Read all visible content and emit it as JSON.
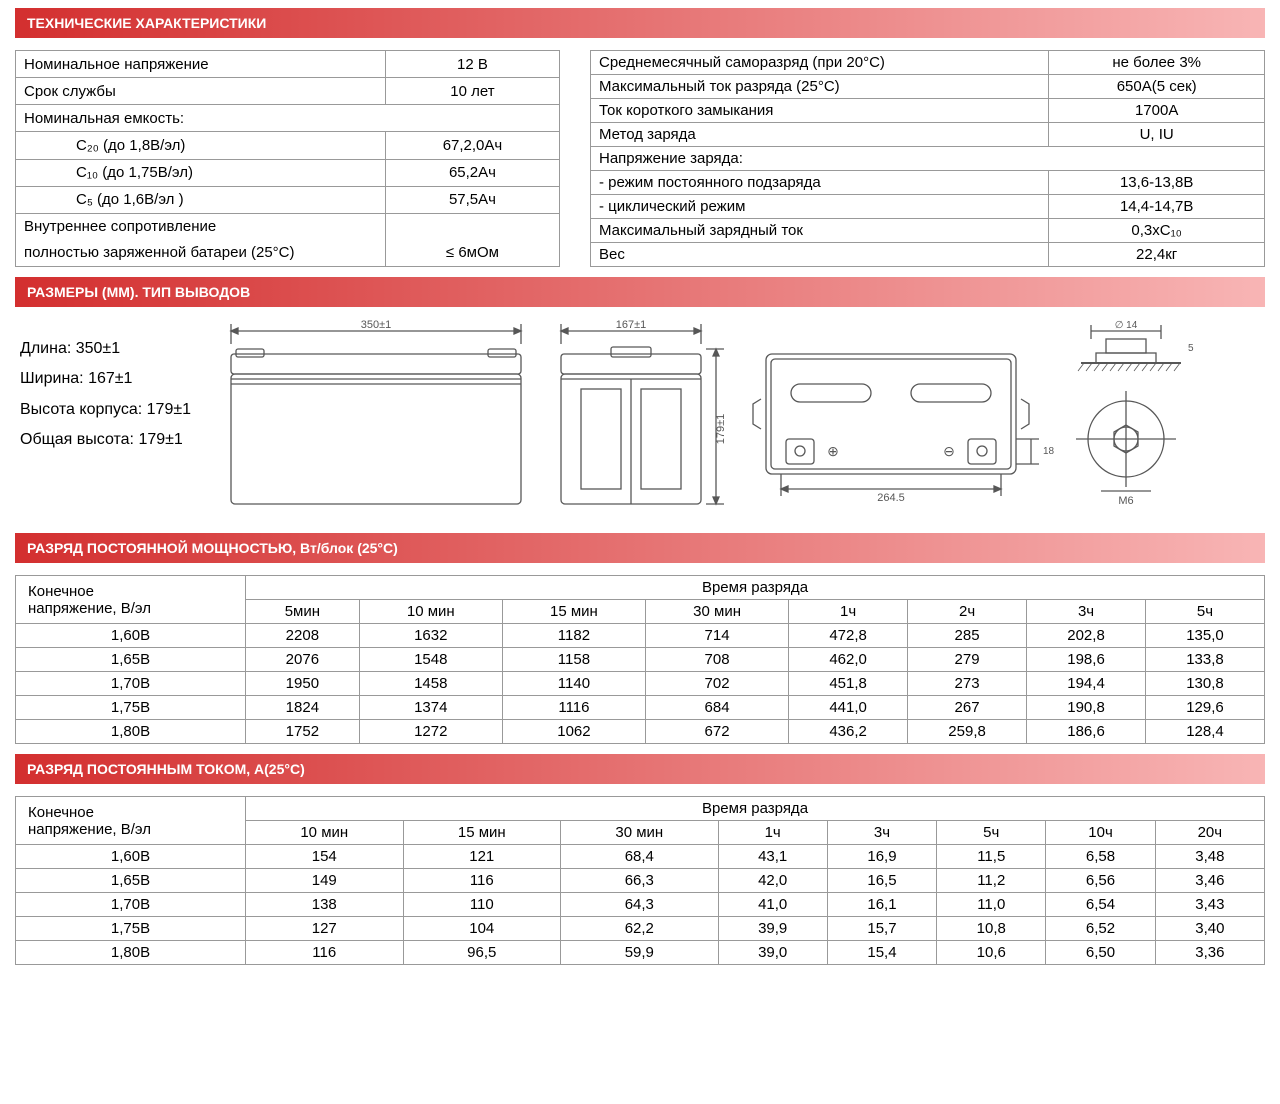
{
  "colors": {
    "header_grad_start": "#d32f2f",
    "header_grad_end": "#f8b5b5",
    "border": "#999999",
    "text": "#000000",
    "bg": "#ffffff",
    "drawing_stroke": "#575757"
  },
  "sections": {
    "tech_specs": "ТЕХНИЧЕСКИЕ ХАРАКТЕРИСТИКИ",
    "dimensions": "РАЗМЕРЫ (ММ). ТИП ВЫВОДОВ",
    "power_discharge": "РАЗРЯД ПОСТОЯННОЙ МОЩНОСТЬЮ, Вт/блок (25°С)",
    "current_discharge": "РАЗРЯД ПОСТОЯННЫМ ТОКОМ, А(25°С)"
  },
  "spec_left": {
    "r1": {
      "label": "Номинальное напряжение",
      "value": "12 В"
    },
    "r2": {
      "label": "Срок службы",
      "value": "10 лет"
    },
    "r3": {
      "label": "Номинальная емкость:",
      "value": ""
    },
    "r4": {
      "label": "С₂₀   (до 1,8В/эл)",
      "value": "67,2,0Ач"
    },
    "r5": {
      "label": "С₁₀   (до 1,75В/эл)",
      "value": "65,2Ач"
    },
    "r6": {
      "label": "С₅   (до 1,6В/эл )",
      "value": "57,5Ач"
    },
    "r7": {
      "label1": "Внутреннее сопротивление",
      "label2": "полностью заряженной батареи (25°С)",
      "value": "≤ 6мОм"
    }
  },
  "spec_right": {
    "r1": {
      "label": "Среднемесячный саморазряд (при 20°С)",
      "value": "не более 3%"
    },
    "r2": {
      "label": "Максимальный ток разряда (25°С)",
      "value": "650А(5 сек)"
    },
    "r3": {
      "label": "Ток короткого замыкания",
      "value": "1700А"
    },
    "r4": {
      "label": "Метод заряда",
      "value": "U, IU"
    },
    "r5": {
      "label": "Напряжение заряда:",
      "value": ""
    },
    "r6": {
      "label": "- режим постоянного подзаряда",
      "value": "13,6-13,8В"
    },
    "r7": {
      "label": "- циклический режим",
      "value": "14,4-14,7В"
    },
    "r8": {
      "label": "Максимальный зарядный ток",
      "value": "0,3xС₁₀"
    },
    "r9": {
      "label": "Вес",
      "value": "22,4кг"
    }
  },
  "dims": {
    "length": "Длина: 350±1",
    "width": "Ширина: 167±1",
    "body_height": "Высота корпуса: 179±1",
    "total_height": "Общая высота: 179±1",
    "drawing_labels": {
      "l350": "350±1",
      "l167": "167±1",
      "l179": "179±1",
      "l264": "264.5",
      "l18": "18",
      "diam14": "∅ 14",
      "m6": "M6"
    }
  },
  "power_table": {
    "row_header": {
      "l1": "Конечное",
      "l2": "напряжение, В/эл"
    },
    "col_group": "Время разряда",
    "cols": [
      "5мин",
      "10 мин",
      "15 мин",
      "30 мин",
      "1ч",
      "2ч",
      "3ч",
      "5ч"
    ],
    "rows": [
      {
        "v": "1,60В",
        "d": [
          "2208",
          "1632",
          "1182",
          "714",
          "472,8",
          "285",
          "202,8",
          "135,0"
        ]
      },
      {
        "v": "1,65В",
        "d": [
          "2076",
          "1548",
          "1158",
          "708",
          "462,0",
          "279",
          "198,6",
          "133,8"
        ]
      },
      {
        "v": "1,70В",
        "d": [
          "1950",
          "1458",
          "1140",
          "702",
          "451,8",
          "273",
          "194,4",
          "130,8"
        ]
      },
      {
        "v": "1,75В",
        "d": [
          "1824",
          "1374",
          "1116",
          "684",
          "441,0",
          "267",
          "190,8",
          "129,6"
        ]
      },
      {
        "v": "1,80В",
        "d": [
          "1752",
          "1272",
          "1062",
          "672",
          "436,2",
          "259,8",
          "186,6",
          "128,4"
        ]
      }
    ]
  },
  "current_table": {
    "row_header": {
      "l1": "Конечное",
      "l2": "напряжение, В/эл"
    },
    "col_group": "Время разряда",
    "cols": [
      "10 мин",
      "15 мин",
      "30 мин",
      "1ч",
      "3ч",
      "5ч",
      "10ч",
      "20ч"
    ],
    "rows": [
      {
        "v": "1,60В",
        "d": [
          "154",
          "121",
          "68,4",
          "43,1",
          "16,9",
          "11,5",
          "6,58",
          "3,48"
        ]
      },
      {
        "v": "1,65В",
        "d": [
          "149",
          "116",
          "66,3",
          "42,0",
          "16,5",
          "11,2",
          "6,56",
          "3,46"
        ]
      },
      {
        "v": "1,70В",
        "d": [
          "138",
          "110",
          "64,3",
          "41,0",
          "16,1",
          "11,0",
          "6,54",
          "3,43"
        ]
      },
      {
        "v": "1,75В",
        "d": [
          "127",
          "104",
          "62,2",
          "39,9",
          "15,7",
          "10,8",
          "6,52",
          "3,40"
        ]
      },
      {
        "v": "1,80В",
        "d": [
          "116",
          "96,5",
          "59,9",
          "39,0",
          "15,4",
          "10,6",
          "6,50",
          "3,36"
        ]
      }
    ]
  }
}
